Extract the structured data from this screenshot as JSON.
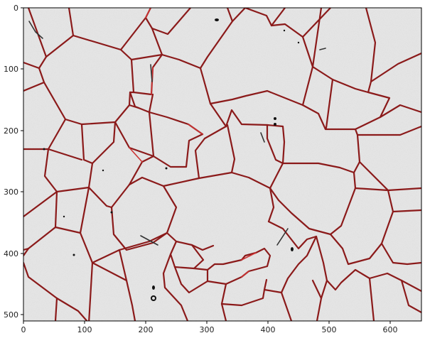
{
  "figure": {
    "image_description_type": "micrograph",
    "x_ticks": [
      "0",
      "100",
      "200",
      "300",
      "400",
      "500",
      "600"
    ],
    "y_ticks": [
      "0",
      "100",
      "200",
      "300",
      "400",
      "500"
    ],
    "x_range": [
      0,
      650
    ],
    "y_range": [
      0,
      510
    ],
    "colors": {
      "background": "#e3e3e3",
      "grain_boundary": "#8b1a1a",
      "highlight_boundary": "#cc3333",
      "axis": "#000000"
    }
  }
}
